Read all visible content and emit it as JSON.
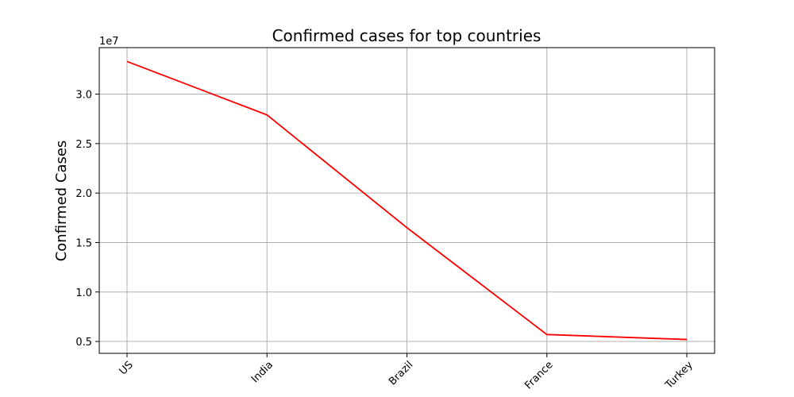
{
  "chart_data": {
    "type": "line",
    "title": "Confirmed cases for top countries",
    "xlabel": "",
    "ylabel": "Confirmed Cases",
    "y_offset_label": "1e7",
    "categories": [
      "US",
      "India",
      "Brazil",
      "France",
      "Turkey"
    ],
    "series": [
      {
        "values": [
          33300000,
          27900000,
          16500000,
          5700000,
          5200000
        ],
        "color": "#ff0000"
      }
    ],
    "ylim": [
      3800000,
      34700000
    ],
    "yticks": [
      5000000,
      10000000,
      15000000,
      20000000,
      25000000,
      30000000
    ],
    "ytick_labels": [
      "0.5",
      "1.0",
      "1.5",
      "2.0",
      "2.5",
      "3.0"
    ],
    "grid": true,
    "legend": false
  }
}
